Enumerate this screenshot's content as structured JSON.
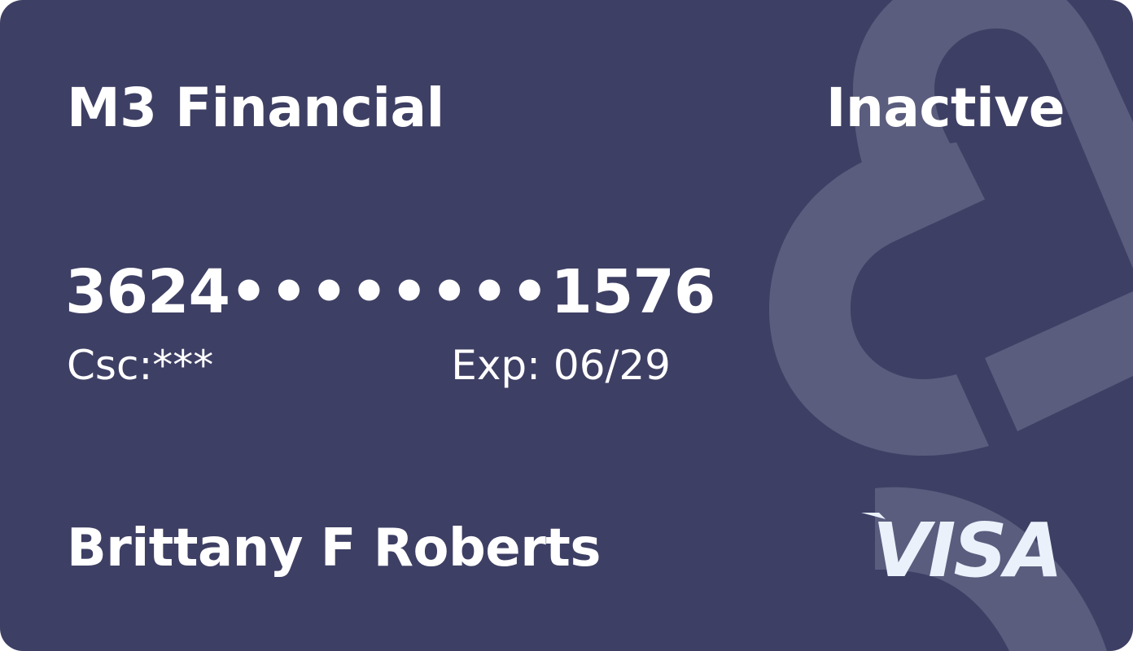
{
  "card": {
    "issuer": "M3 Financial",
    "status": "Inactive",
    "number_first": "3624",
    "number_mask_1": "••••",
    "number_mask_2": "••••",
    "number_last": "1576",
    "csc": "Csc:***",
    "expiry": "Exp: 06/29",
    "holder": "Brittany F Roberts",
    "network": "VISA",
    "network_icon": "visa-logo-icon",
    "background_icon": "ampersand-watermark-icon",
    "colors": {
      "card_background": "#3e3f64",
      "watermark": "#5b5d7e",
      "text": "#ffffff",
      "brand": "#eaf1fb"
    }
  }
}
